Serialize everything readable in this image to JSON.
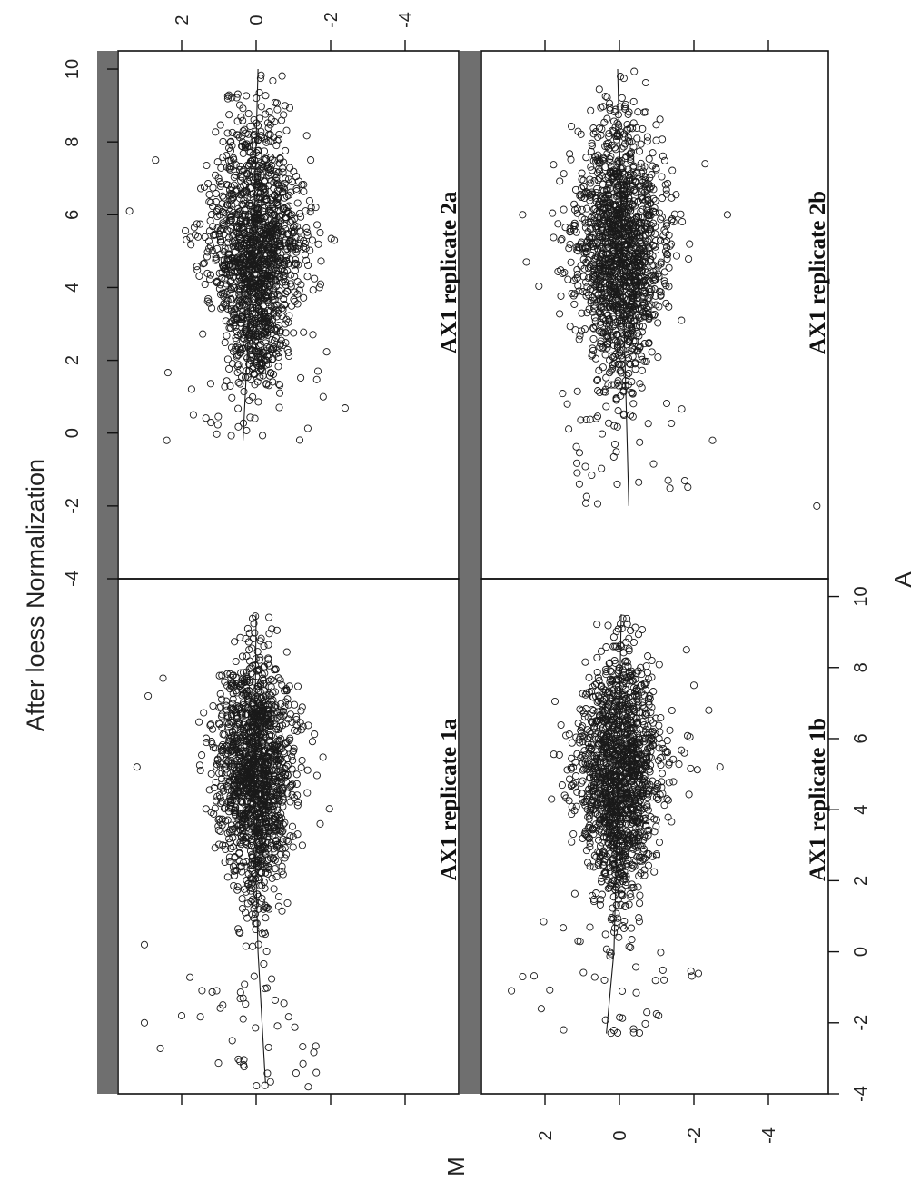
{
  "chart_data": {
    "type": "scatter",
    "title": "After loess Normalization",
    "xlabel": "A",
    "ylabel": "M",
    "xlim": [
      -4,
      10.5
    ],
    "ylim": [
      -5.5,
      4.5
    ],
    "x_ticks": [
      "-4",
      "-2",
      "0",
      "2",
      "4",
      "6",
      "8",
      "10"
    ],
    "y_ticks": [
      "2",
      "0",
      "-2",
      "-4"
    ],
    "grid": false,
    "panels": [
      {
        "name": "AX1 replicate 1a",
        "x_range": [
          -3.8,
          9.5
        ],
        "m_center": 0,
        "m_spread": 0.6,
        "loess": [
          [
            -3.7,
            -0.25
          ],
          [
            0,
            -0.05
          ],
          [
            4,
            0.05
          ],
          [
            9.5,
            0.0
          ]
        ],
        "outliers": [
          [
            -3.8,
            -1.4
          ],
          [
            -2.0,
            3.0
          ],
          [
            -1.8,
            2.0
          ],
          [
            0.2,
            3.0
          ],
          [
            5.2,
            3.2
          ],
          [
            7.2,
            2.9
          ],
          [
            7.7,
            2.5
          ]
        ]
      },
      {
        "name": "AX1 replicate 1b",
        "x_range": [
          -2.3,
          9.5
        ],
        "m_center": 0,
        "m_spread": 0.65,
        "loess": [
          [
            -2.3,
            0.35
          ],
          [
            0,
            0.15
          ],
          [
            4,
            0.05
          ],
          [
            9.5,
            -0.05
          ]
        ],
        "outliers": [
          [
            -1.1,
            2.9
          ],
          [
            -0.7,
            2.6
          ],
          [
            -1.6,
            2.1
          ],
          [
            -2.2,
            1.5
          ],
          [
            5.2,
            -2.7
          ],
          [
            6.8,
            -2.4
          ],
          [
            7.5,
            -2.0
          ],
          [
            8.5,
            -1.8
          ]
        ]
      },
      {
        "name": "AX1 replicate 2a",
        "x_range": [
          -0.2,
          10.1
        ],
        "m_center": 0,
        "m_spread": 0.7,
        "loess": [
          [
            -0.2,
            0.35
          ],
          [
            3,
            0.2
          ],
          [
            6,
            0.05
          ],
          [
            10,
            -0.05
          ]
        ],
        "outliers": [
          [
            -0.2,
            2.4
          ],
          [
            6.1,
            3.4
          ],
          [
            7.5,
            2.7
          ],
          [
            4.0,
            -1.7
          ],
          [
            5.3,
            -2.1
          ],
          [
            1.0,
            -1.8
          ]
        ]
      },
      {
        "name": "AX1 replicate 2b",
        "x_range": [
          -2.0,
          10.1
        ],
        "m_center": 0,
        "m_spread": 0.7,
        "loess": [
          [
            -2.0,
            -0.25
          ],
          [
            2,
            -0.15
          ],
          [
            6,
            -0.05
          ],
          [
            10,
            0.05
          ]
        ],
        "outliers": [
          [
            -2.0,
            -5.3
          ],
          [
            -0.2,
            -2.5
          ],
          [
            6.0,
            -2.9
          ],
          [
            7.4,
            -2.3
          ],
          [
            6.0,
            2.6
          ],
          [
            4.7,
            2.5
          ],
          [
            0.8,
            1.4
          ]
        ]
      }
    ]
  }
}
